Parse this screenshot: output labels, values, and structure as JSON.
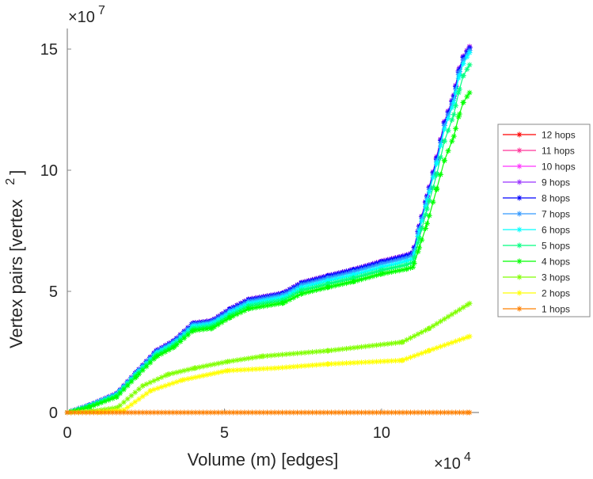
{
  "chart_data": {
    "type": "line",
    "title": "",
    "xlabel": "Volume (m) [edges]",
    "ylabel": "Vertex pairs [vertex",
    "ylabel_sup": "2",
    "ylabel_end": "]",
    "x_multiplier": "×10",
    "x_multiplier_exp": "4",
    "y_multiplier": "×10",
    "y_multiplier_exp": "7",
    "xlim": [
      0,
      13.1
    ],
    "ylim": [
      0,
      15.85
    ],
    "x_ticks": [
      "0",
      "5",
      "10"
    ],
    "x_tick_values": [
      0,
      5,
      10
    ],
    "y_ticks": [
      "0",
      "5",
      "10",
      "15"
    ],
    "y_tick_values": [
      0,
      5,
      10,
      15
    ],
    "grid": false,
    "legend_position": "right",
    "series": [
      {
        "name": "12 hops",
        "color": "#ff0000",
        "x": [
          0,
          0.7,
          1.57,
          2.2,
          2.83,
          3.4,
          4.0,
          4.6,
          5.18,
          5.77,
          6.87,
          7.45,
          8.3,
          9.1,
          10.0,
          10.8,
          11.0,
          11.2,
          11.45,
          11.75,
          12.0,
          12.3,
          12.45,
          12.6,
          12.8
        ],
        "y": [
          0,
          0.3,
          0.78,
          1.67,
          2.55,
          2.97,
          3.69,
          3.79,
          4.28,
          4.67,
          4.93,
          5.36,
          5.65,
          5.9,
          6.24,
          6.5,
          6.6,
          7.7,
          8.95,
          10.5,
          12.0,
          13.1,
          14.1,
          14.7,
          15.1
        ]
      },
      {
        "name": "11 hops",
        "color": "#ff3399",
        "x": [
          0,
          0.7,
          1.57,
          2.2,
          2.83,
          3.4,
          4.0,
          4.6,
          5.18,
          5.77,
          6.87,
          7.45,
          8.3,
          9.1,
          10.0,
          10.8,
          11.0,
          11.2,
          11.45,
          11.75,
          12.0,
          12.3,
          12.45,
          12.6,
          12.8
        ],
        "y": [
          0,
          0.3,
          0.78,
          1.67,
          2.55,
          2.97,
          3.69,
          3.79,
          4.28,
          4.67,
          4.93,
          5.36,
          5.65,
          5.9,
          6.24,
          6.5,
          6.6,
          7.7,
          8.95,
          10.5,
          12.0,
          13.1,
          14.1,
          14.7,
          15.1
        ]
      },
      {
        "name": "10 hops",
        "color": "#ff33ff",
        "x": [
          0,
          0.7,
          1.57,
          2.2,
          2.83,
          3.4,
          4.0,
          4.6,
          5.18,
          5.77,
          6.87,
          7.45,
          8.3,
          9.1,
          10.0,
          10.8,
          11.0,
          11.2,
          11.45,
          11.75,
          12.0,
          12.3,
          12.45,
          12.6,
          12.8
        ],
        "y": [
          0,
          0.3,
          0.78,
          1.67,
          2.55,
          2.97,
          3.69,
          3.79,
          4.28,
          4.67,
          4.93,
          5.36,
          5.65,
          5.9,
          6.24,
          6.5,
          6.6,
          7.7,
          8.95,
          10.5,
          12.0,
          13.1,
          14.1,
          14.7,
          15.1
        ]
      },
      {
        "name": "9 hops",
        "color": "#9933ff",
        "x": [
          0,
          0.7,
          1.57,
          2.2,
          2.83,
          3.4,
          4.0,
          4.6,
          5.18,
          5.77,
          6.87,
          7.45,
          8.3,
          9.1,
          10.0,
          10.8,
          11.0,
          11.2,
          11.45,
          11.75,
          12.0,
          12.3,
          12.45,
          12.6,
          12.8
        ],
        "y": [
          0,
          0.3,
          0.78,
          1.67,
          2.55,
          2.97,
          3.69,
          3.79,
          4.28,
          4.67,
          4.93,
          5.36,
          5.65,
          5.9,
          6.24,
          6.5,
          6.6,
          7.7,
          8.95,
          10.5,
          12.0,
          13.1,
          14.1,
          14.7,
          15.1
        ]
      },
      {
        "name": "8 hops",
        "color": "#0000ff",
        "x": [
          0,
          0.7,
          1.57,
          2.2,
          2.83,
          3.4,
          4.0,
          4.6,
          5.18,
          5.77,
          6.87,
          7.45,
          8.3,
          9.1,
          10.0,
          10.8,
          11.0,
          11.2,
          11.45,
          11.75,
          12.0,
          12.3,
          12.45,
          12.6,
          12.8
        ],
        "y": [
          0,
          0.3,
          0.78,
          1.66,
          2.54,
          2.96,
          3.68,
          3.78,
          4.27,
          4.66,
          4.92,
          5.35,
          5.64,
          5.89,
          6.22,
          6.48,
          6.58,
          7.68,
          8.92,
          10.45,
          11.95,
          13.05,
          14.05,
          14.65,
          15.05
        ]
      },
      {
        "name": "7 hops",
        "color": "#3399ff",
        "x": [
          0,
          0.7,
          1.57,
          2.2,
          2.83,
          3.4,
          4.0,
          4.6,
          5.18,
          5.77,
          6.87,
          7.45,
          8.3,
          9.1,
          10.0,
          10.8,
          11.0,
          11.2,
          11.45,
          11.75,
          12.0,
          12.3,
          12.45,
          12.6,
          12.8
        ],
        "y": [
          0,
          0.29,
          0.76,
          1.64,
          2.5,
          2.92,
          3.63,
          3.73,
          4.2,
          4.59,
          4.85,
          5.27,
          5.55,
          5.8,
          6.13,
          6.38,
          6.48,
          7.6,
          8.85,
          10.35,
          11.85,
          12.95,
          13.95,
          14.55,
          14.95
        ]
      },
      {
        "name": "6 hops",
        "color": "#00ffff",
        "x": [
          0,
          0.7,
          1.57,
          2.2,
          2.83,
          3.4,
          4.0,
          4.6,
          5.18,
          5.77,
          6.87,
          7.45,
          8.3,
          9.1,
          10.0,
          10.8,
          11.0,
          11.2,
          11.45,
          11.75,
          12.0,
          12.3,
          12.45,
          12.6,
          12.8
        ],
        "y": [
          0,
          0.28,
          0.74,
          1.6,
          2.45,
          2.86,
          3.56,
          3.66,
          4.12,
          4.5,
          4.75,
          5.16,
          5.44,
          5.68,
          6.0,
          6.25,
          6.35,
          7.5,
          8.75,
          10.25,
          11.7,
          12.8,
          13.8,
          14.4,
          14.85
        ]
      },
      {
        "name": "5 hops",
        "color": "#00ff80",
        "x": [
          0,
          0.7,
          1.57,
          2.2,
          2.83,
          3.4,
          4.0,
          4.6,
          5.18,
          5.77,
          6.87,
          7.45,
          8.3,
          9.1,
          10.0,
          10.8,
          11.0,
          11.2,
          11.45,
          11.75,
          12.0,
          12.3,
          12.45,
          12.6,
          12.8
        ],
        "y": [
          0,
          0.26,
          0.7,
          1.55,
          2.38,
          2.79,
          3.47,
          3.57,
          4.02,
          4.4,
          4.64,
          5.04,
          5.31,
          5.55,
          5.87,
          6.1,
          6.2,
          7.2,
          8.4,
          9.8,
          11.2,
          12.3,
          13.2,
          13.9,
          14.35
        ]
      },
      {
        "name": "4 hops",
        "color": "#00ff00",
        "x": [
          0,
          0.7,
          1.57,
          2.2,
          2.83,
          3.4,
          4.0,
          4.6,
          5.18,
          5.77,
          6.87,
          7.45,
          8.3,
          9.1,
          10.0,
          10.8,
          11.0,
          11.2,
          11.45,
          11.75,
          12.0,
          12.3,
          12.45,
          12.6,
          12.8
        ],
        "y": [
          0,
          0.22,
          0.64,
          1.48,
          2.3,
          2.7,
          3.38,
          3.47,
          3.92,
          4.28,
          4.52,
          4.9,
          5.17,
          5.4,
          5.72,
          5.92,
          6.0,
          6.8,
          7.8,
          9.2,
          10.4,
          11.4,
          12.2,
          12.8,
          13.2
        ]
      },
      {
        "name": "3 hops",
        "color": "#80ff00",
        "x": [
          0,
          0.8,
          1.6,
          2.4,
          3.2,
          4.05,
          5.1,
          6.2,
          8.3,
          10.65,
          11.5,
          12.8
        ],
        "y": [
          0,
          0.05,
          0.2,
          1.1,
          1.57,
          1.83,
          2.1,
          2.32,
          2.55,
          2.9,
          3.46,
          4.5
        ]
      },
      {
        "name": "2 hops",
        "color": "#ffff00",
        "x": [
          0,
          1.0,
          1.8,
          2.65,
          3.66,
          5.1,
          6.6,
          8.3,
          10.65,
          11.5,
          12.8
        ],
        "y": [
          0,
          0.02,
          0.1,
          0.9,
          1.34,
          1.73,
          1.83,
          2.0,
          2.15,
          2.55,
          3.14
        ]
      },
      {
        "name": "1 hops",
        "color": "#ff8000",
        "x": [
          0,
          12.8
        ],
        "y": [
          0,
          0
        ]
      }
    ]
  }
}
